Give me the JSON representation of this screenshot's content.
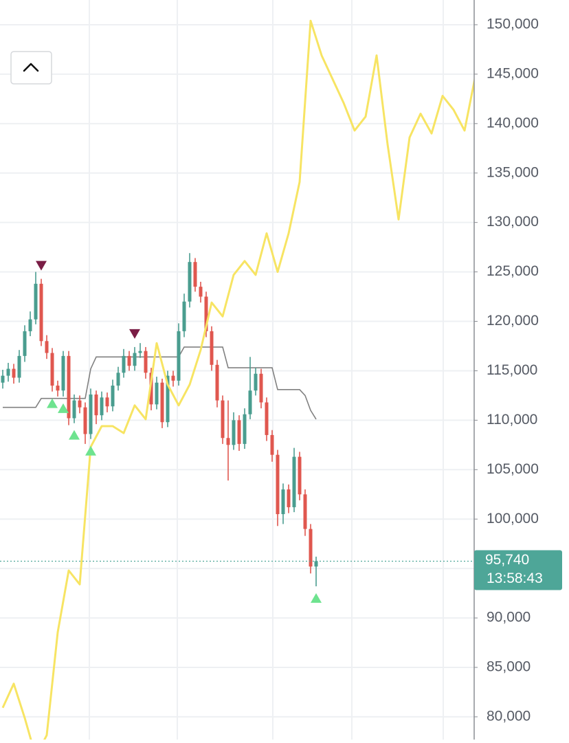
{
  "chart_data": {
    "type": "candlestick",
    "ylim": [
      77700,
      152500
    ],
    "yticks": [
      {
        "value": 80000,
        "label": "80,000"
      },
      {
        "value": 85000,
        "label": "85,000"
      },
      {
        "value": 90000,
        "label": "90,000"
      },
      {
        "value": 95000,
        "label": "95,000"
      },
      {
        "value": 100000,
        "label": "100,000"
      },
      {
        "value": 105000,
        "label": "105,000"
      },
      {
        "value": 110000,
        "label": "110,000"
      },
      {
        "value": 115000,
        "label": "115,000"
      },
      {
        "value": 120000,
        "label": "120,000"
      },
      {
        "value": 125000,
        "label": "125,000"
      },
      {
        "value": 130000,
        "label": "130,000"
      },
      {
        "value": 135000,
        "label": "135,000"
      },
      {
        "value": 140000,
        "label": "140,000"
      },
      {
        "value": 145000,
        "label": "145,000"
      },
      {
        "value": 150000,
        "label": "150,000"
      }
    ],
    "grid": true,
    "up_color": "#4a9d8f",
    "down_color": "#e0574f",
    "open": [
      113800,
      114500,
      115200,
      114300,
      116500,
      119000,
      120200,
      123800,
      118000,
      116800,
      113500,
      113000,
      116500,
      110200,
      112000,
      111300,
      108600,
      112600,
      110500,
      112300,
      111400,
      113500,
      114800,
      116500,
      115500,
      116800,
      117000,
      114800,
      111600,
      113800,
      109800,
      114500,
      114000,
      119000,
      122000,
      126000,
      123500,
      122500,
      119000,
      115600,
      112000,
      108200,
      107500,
      110000,
      107600,
      110600,
      113000,
      114700,
      111800,
      108500,
      106500,
      100500,
      103000,
      101200,
      106300,
      102500,
      99000,
      95200
    ],
    "high": [
      115100,
      115800,
      115700,
      117100,
      119600,
      121000,
      125000,
      124300,
      118600,
      117300,
      114000,
      117000,
      117000,
      112600,
      112500,
      111800,
      113200,
      113000,
      112900,
      112800,
      114100,
      115400,
      117200,
      117000,
      117400,
      117800,
      117400,
      115300,
      114400,
      114200,
      115000,
      115000,
      119800,
      122800,
      126900,
      126400,
      124000,
      123000,
      119500,
      116100,
      112500,
      112000,
      110800,
      110500,
      111200,
      116400,
      115300,
      115200,
      112300,
      109000,
      107000,
      103600,
      103500,
      107200,
      106800,
      103000,
      99500,
      96200
    ],
    "low": [
      113200,
      113900,
      113700,
      113800,
      115900,
      118500,
      119700,
      117500,
      116200,
      112900,
      112400,
      112400,
      109500,
      109700,
      110700,
      107600,
      108100,
      109600,
      110000,
      110800,
      110900,
      113000,
      114300,
      115000,
      115000,
      116300,
      114200,
      111000,
      111100,
      109200,
      109300,
      113400,
      113500,
      118400,
      121400,
      123000,
      121900,
      118400,
      115000,
      111300,
      107600,
      103900,
      107000,
      106900,
      107100,
      110100,
      112500,
      111200,
      107900,
      105800,
      99300,
      99500,
      100600,
      100700,
      101900,
      98300,
      94500,
      93200
    ],
    "close": [
      114500,
      115200,
      114300,
      116500,
      119000,
      120200,
      123800,
      118000,
      116800,
      113500,
      113000,
      116500,
      110200,
      112000,
      111300,
      108600,
      112600,
      110500,
      112300,
      111400,
      113500,
      114800,
      116500,
      115500,
      116800,
      117000,
      114800,
      111600,
      113800,
      109800,
      114500,
      114000,
      119000,
      122000,
      126000,
      123500,
      122500,
      119000,
      115600,
      112000,
      108200,
      107500,
      110000,
      107600,
      110600,
      113000,
      114700,
      111800,
      108500,
      106500,
      100500,
      103000,
      101200,
      106300,
      102500,
      99000,
      95200,
      95740
    ],
    "overlays": [
      {
        "color": "#f7e463",
        "values": [
          80920,
          83350,
          79880,
          76000,
          78140,
          88560,
          94800,
          93400,
          107300,
          109400,
          109400,
          108700,
          111500,
          110100,
          117800,
          113600,
          111500,
          113600,
          117100,
          121900,
          120500,
          124700,
          126100,
          124700,
          128900,
          125000,
          128900,
          134100,
          150400,
          146900,
          144500,
          142100,
          139300,
          140700,
          146900,
          137900,
          130300,
          138600,
          141000,
          139000,
          142800,
          141400,
          139300,
          144900
        ]
      },
      {
        "color": "#808080",
        "values": [
          111300,
          111300,
          111300,
          111300,
          111300,
          111300,
          111300,
          112200,
          112200,
          112200,
          112200,
          112200,
          112200,
          112200,
          112200,
          112200,
          115200,
          116400,
          116400,
          116400,
          116400,
          116400,
          116400,
          116400,
          116400,
          116400,
          116400,
          116400,
          116400,
          116400,
          116400,
          116400,
          116400,
          117400,
          117400,
          117400,
          117400,
          117400,
          117400,
          117400,
          117400,
          115300,
          115300,
          115300,
          115300,
          115300,
          115300,
          115300,
          115300,
          115300,
          113100,
          113100,
          113100,
          113100,
          113100,
          112500,
          111000,
          110100
        ]
      }
    ],
    "buy_signals": [
      9,
      11,
      13,
      16,
      57
    ],
    "sell_signals": [
      7,
      24
    ],
    "buy_color": "#6ee38f",
    "sell_color": "#7a1d45",
    "last_price": {
      "value": 95740,
      "label": "95,740"
    },
    "countdown": "13:58:43",
    "price_tag_color": "#4ea698"
  }
}
